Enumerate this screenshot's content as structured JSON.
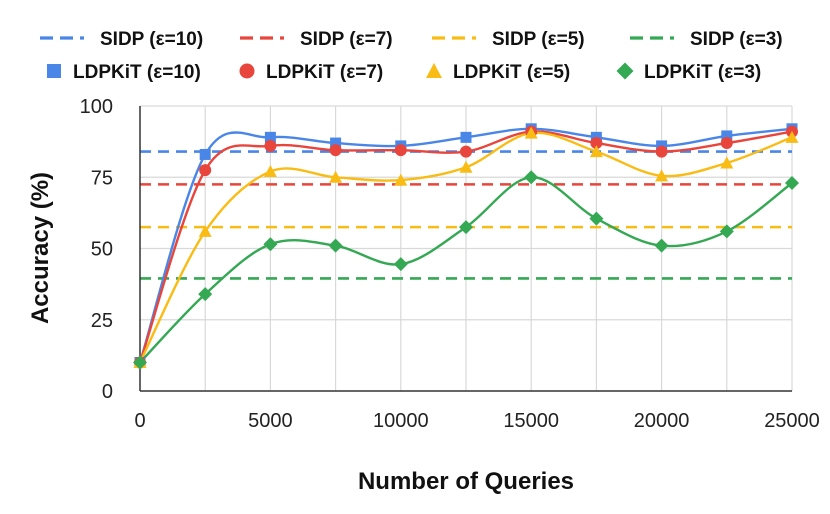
{
  "chart_data": {
    "type": "line",
    "title": "",
    "xlabel": "Number of Queries",
    "ylabel": "Accuracy (%)",
    "xlim": [
      0,
      25000
    ],
    "ylim": [
      0,
      100
    ],
    "x_ticks": [
      "0",
      "5000",
      "10000",
      "15000",
      "20000",
      "25000"
    ],
    "y_ticks": [
      "0",
      "25",
      "50",
      "75",
      "100"
    ],
    "grid": true,
    "legend_position": "top",
    "x": [
      0,
      2500,
      5000,
      7500,
      10000,
      12500,
      15000,
      17500,
      20000,
      22500,
      25000
    ],
    "baselines": [
      {
        "name": "SIDP (ε=10)",
        "value": 84,
        "color": "#4A86E8"
      },
      {
        "name": "SIDP (ε=7)",
        "value": 72.5,
        "color": "#E8453C"
      },
      {
        "name": "SIDP (ε=5)",
        "value": 57.5,
        "color": "#F9BC15"
      },
      {
        "name": "SIDP (ε=3)",
        "value": 39.5,
        "color": "#34A853"
      }
    ],
    "series": [
      {
        "name": "LDPKiT (ε=10)",
        "marker": "square",
        "color": "#4A86E8",
        "values": [
          10,
          83,
          89,
          87,
          86,
          89,
          92,
          89,
          86,
          89.5,
          92
        ]
      },
      {
        "name": "LDPKiT (ε=7)",
        "marker": "circle",
        "color": "#E8453C",
        "values": [
          10,
          77.5,
          86,
          84.5,
          84.5,
          84,
          91,
          87,
          84,
          87,
          91
        ]
      },
      {
        "name": "LDPKiT (ε=5)",
        "marker": "triangle",
        "color": "#F9BC15",
        "values": [
          10,
          56,
          77,
          75,
          74,
          78.5,
          90.5,
          84,
          75.5,
          80,
          89
        ]
      },
      {
        "name": "LDPKiT (ε=3)",
        "marker": "diamond",
        "color": "#34A853",
        "values": [
          10,
          34,
          51.5,
          51,
          44.5,
          57.5,
          75,
          60.5,
          51,
          56,
          73
        ]
      }
    ]
  }
}
